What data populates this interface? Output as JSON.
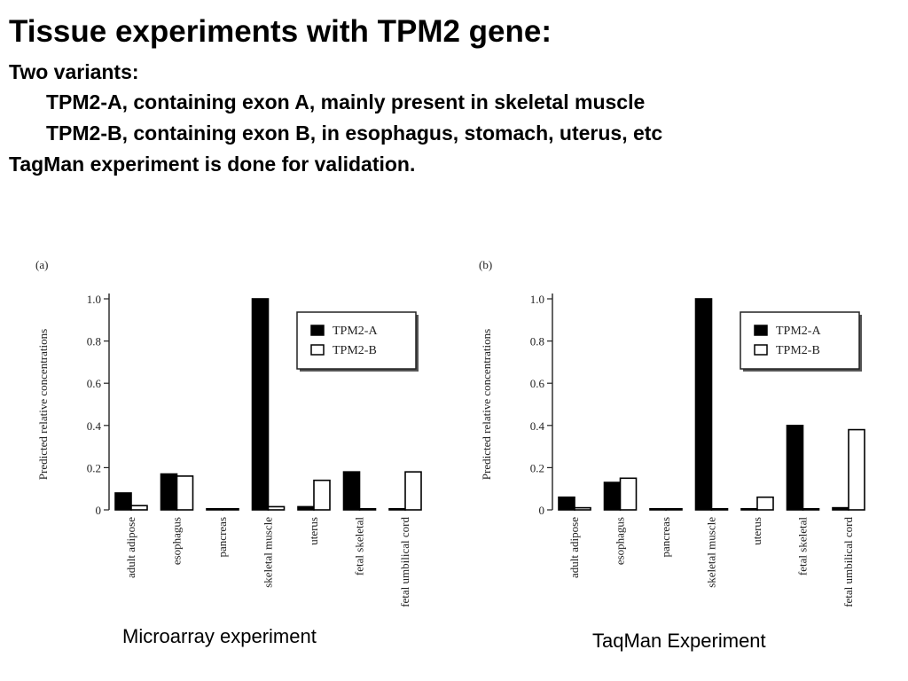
{
  "slide": {
    "title": "Tissue experiments with TPM2 gene:",
    "lines": [
      "Two variants:",
      "TPM2-A, containing exon A, mainly present in skeletal muscle",
      "TPM2-B, containing exon B, in esophagus, stomach, uterus, etc",
      "TagMan  experiment is done for validation."
    ],
    "captions": [
      "Microarray experiment",
      "TaqMan Experiment"
    ]
  },
  "chart_data": [
    {
      "type": "bar",
      "panel_label": "(a)",
      "ylabel": "Predicted relative concentrations",
      "ylim": [
        0,
        1.0
      ],
      "yticks": [
        0,
        0.2,
        0.4,
        0.6,
        0.8,
        1.0
      ],
      "ytick_labels": [
        "0",
        "0.2",
        "0.4",
        "0.6",
        "0.8",
        "1.0"
      ],
      "categories": [
        "adult adipose",
        "esophagus",
        "pancreas",
        "skeletal muscle",
        "uterus",
        "fetal skeletal",
        "fetal umbilical cord"
      ],
      "series": [
        {
          "name": "TPM2-A",
          "fill": "#000000",
          "values": [
            0.08,
            0.17,
            0.005,
            1.0,
            0.015,
            0.18,
            0.005
          ]
        },
        {
          "name": "TPM2-B",
          "fill": "#ffffff",
          "values": [
            0.02,
            0.16,
            0.005,
            0.015,
            0.14,
            0.005,
            0.18
          ]
        }
      ],
      "legend": "top-right",
      "grid": false
    },
    {
      "type": "bar",
      "panel_label": "(b)",
      "ylabel": "Predicted relative concentrations",
      "ylim": [
        0,
        1.0
      ],
      "yticks": [
        0,
        0.2,
        0.4,
        0.6,
        0.8,
        1.0
      ],
      "ytick_labels": [
        "0",
        "0.2",
        "0.4",
        "0.6",
        "0.8",
        "1.0"
      ],
      "categories": [
        "adult adipose",
        "esophagus",
        "pancreas",
        "skeletal muscle",
        "uterus",
        "fetal skeletal",
        "fetal umbilical cord"
      ],
      "series": [
        {
          "name": "TPM2-A",
          "fill": "#000000",
          "values": [
            0.06,
            0.13,
            0.005,
            1.0,
            0.005,
            0.4,
            0.01
          ]
        },
        {
          "name": "TPM2-B",
          "fill": "#ffffff",
          "values": [
            0.01,
            0.15,
            0.005,
            0.005,
            0.06,
            0.005,
            0.38
          ]
        }
      ],
      "legend": "top-right",
      "grid": false
    }
  ]
}
